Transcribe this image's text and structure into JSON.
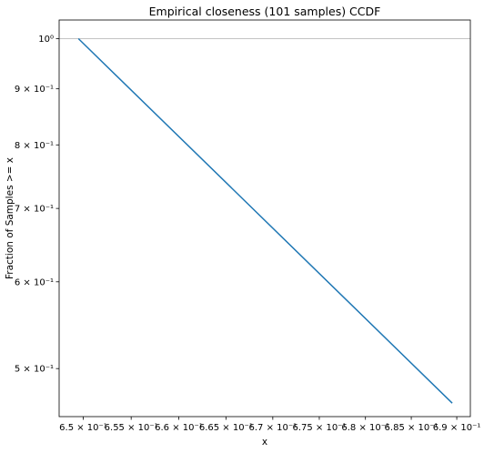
{
  "chart_data": {
    "type": "line",
    "title": "Empirical closeness (101 samples) CCDF",
    "xlabel": "x",
    "ylabel": "Fraction of Samples >= x",
    "xscale": "log",
    "yscale": "log",
    "xlim": [
      0.6475,
      0.6915
    ],
    "ylim": [
      0.452,
      1.04
    ],
    "grid": "horizontal line at y = 1",
    "colors": {
      "line": "#1f77b4",
      "grid": "#b0b0b0"
    },
    "x_ticks": [
      {
        "value": 0.65,
        "label": "6.5 × 10⁻¹"
      },
      {
        "value": 0.655,
        "label": "6.55 × 10⁻¹"
      },
      {
        "value": 0.66,
        "label": "6.6 × 10⁻¹"
      },
      {
        "value": 0.665,
        "label": "6.65 × 10⁻¹"
      },
      {
        "value": 0.67,
        "label": "6.7 × 10⁻¹"
      },
      {
        "value": 0.675,
        "label": "6.75 × 10⁻¹"
      },
      {
        "value": 0.68,
        "label": "6.8 × 10⁻¹"
      },
      {
        "value": 0.685,
        "label": "6.85 × 10⁻¹"
      },
      {
        "value": 0.69,
        "label": "6.9 × 10⁻¹"
      }
    ],
    "y_ticks": [
      {
        "value": 1.0,
        "label": "10⁰"
      },
      {
        "value": 0.9,
        "label": "9 × 10⁻¹"
      },
      {
        "value": 0.8,
        "label": "8 × 10⁻¹"
      },
      {
        "value": 0.7,
        "label": "7 × 10⁻¹"
      },
      {
        "value": 0.6,
        "label": "6 × 10⁻¹"
      },
      {
        "value": 0.5,
        "label": "5 × 10⁻¹"
      }
    ],
    "series": [
      {
        "x": [
          0.6495,
          0.6895
        ],
        "y": [
          1.0,
          0.465
        ]
      }
    ]
  }
}
